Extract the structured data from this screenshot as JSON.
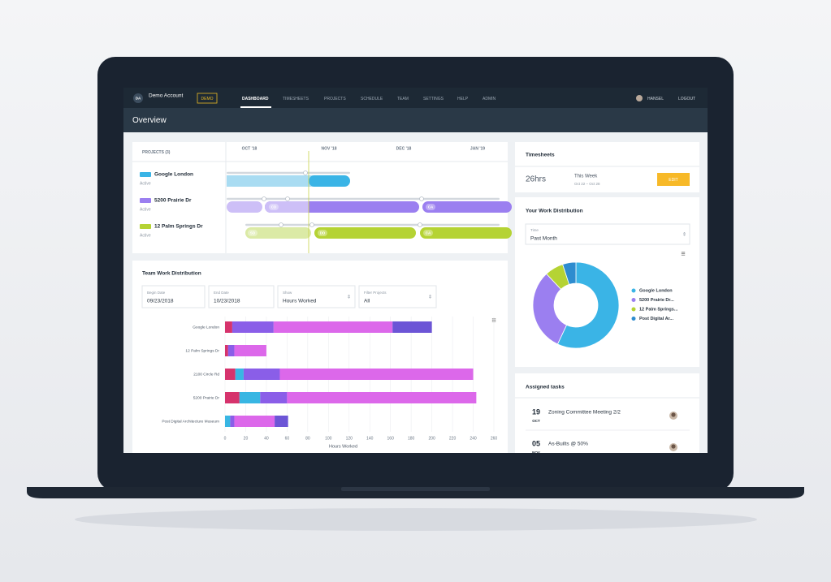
{
  "account": {
    "initials": "DA",
    "name": "Demo Account",
    "badge": "DEMO"
  },
  "nav": [
    "DASHBOARD",
    "TIMESHEETS",
    "PROJECTS",
    "SCHEDULE",
    "TEAM",
    "SETTINGS",
    "HELP",
    "ADMIN"
  ],
  "user": "HANSEL",
  "logout": "LOGOUT",
  "page_title": "Overview",
  "timeline": {
    "header": "PROJECTS (3)",
    "months": [
      "OCT '18",
      "NOV '18",
      "DEC '18",
      "JAN '19"
    ],
    "projects": [
      {
        "name": "Google London",
        "status": "Active",
        "phases": []
      },
      {
        "name": "5200 Prairie Dr",
        "status": "Active",
        "phases": [
          "CD",
          "CA"
        ]
      },
      {
        "name": "12 Palm Springs Dr",
        "status": "Active",
        "phases": [
          "SD",
          "DD",
          "CA"
        ]
      }
    ]
  },
  "filters": [
    {
      "label": "Begin Date",
      "value": "09/23/2018"
    },
    {
      "label": "End Date",
      "value": "10/23/2018"
    },
    {
      "label": "Show",
      "value": "Hours Worked"
    },
    {
      "label": "Filter Projects",
      "value": "All"
    }
  ],
  "timesheets": {
    "title": "Timesheets",
    "hours": "26hrs",
    "period": "This Week",
    "range": "Oct 22 – Oct 28",
    "button": "EDIT"
  },
  "work_filter": {
    "label": "Time",
    "value": "Past Month"
  },
  "tasks": {
    "title": "Assigned tasks",
    "items": [
      {
        "day": "19",
        "month": "OCT",
        "title": "Zoning Committee Meeting 2/2"
      },
      {
        "day": "05",
        "month": "NOV",
        "title": "As-Builts @ 50%"
      }
    ]
  },
  "chart_data": [
    {
      "type": "bar",
      "orientation": "horizontal",
      "stacked": true,
      "title": "Team Work Distribution",
      "categories": [
        "Google London",
        "12 Palm Springs Dr",
        "2100 Circle Rd",
        "5200 Prairie Dr",
        "Post Digital Architecture Museum"
      ],
      "series": [
        {
          "color": "#d6336c",
          "values": [
            7,
            3,
            10,
            14,
            0
          ]
        },
        {
          "color": "#38b6e3",
          "values": [
            0,
            0,
            8,
            20,
            5
          ]
        },
        {
          "color": "#8a5ee8",
          "values": [
            40,
            6,
            35,
            26,
            4
          ]
        },
        {
          "color": "#dc68ea",
          "values": [
            115,
            31,
            187,
            183,
            39
          ]
        },
        {
          "color": "#6c55d6",
          "values": [
            38,
            0,
            0,
            0,
            13
          ]
        }
      ],
      "xlim": [
        0,
        260
      ],
      "xticks": [
        0,
        20,
        40,
        60,
        80,
        100,
        120,
        140,
        160,
        180,
        200,
        220,
        240,
        260
      ],
      "xlabel": "Hours Worked",
      "grid": true
    },
    {
      "type": "pie",
      "donut": true,
      "title": "Your Work Distribution",
      "categories": [
        "Google London",
        "5200 Prairie Dr...",
        "12 Palm Springs...",
        "Post Digital Ar..."
      ],
      "values": [
        57,
        31,
        7,
        5
      ],
      "colors": [
        "#3ab4e6",
        "#9b7ff0",
        "#b5d334",
        "#2e8ccf"
      ],
      "legend": "right"
    }
  ]
}
